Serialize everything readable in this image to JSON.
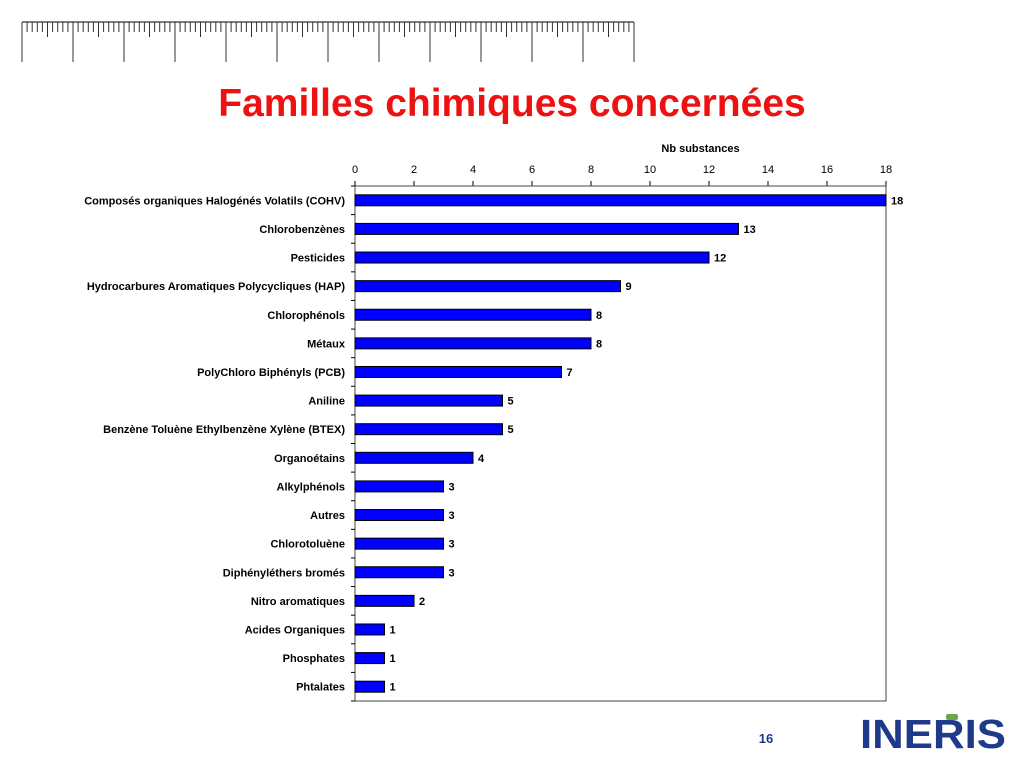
{
  "slide": {
    "title": "Familles chimiques concernées",
    "page_number": "16",
    "logo_text": "INERIS"
  },
  "colors": {
    "title": "#ee1111",
    "bar_fill": "#0000ff",
    "bar_stroke": "#000000",
    "logo": "#1f3a8a",
    "logo_accent": "#6aa84f"
  },
  "chart_data": {
    "type": "bar",
    "orientation": "horizontal",
    "title": "",
    "xlabel": "Nb substances",
    "ylabel": "",
    "xlim": [
      0,
      18
    ],
    "x_ticks": [
      0,
      2,
      4,
      6,
      8,
      10,
      12,
      14,
      16,
      18
    ],
    "x_axis_position": "top",
    "grid": false,
    "legend": "none",
    "categories": [
      "Composés organiques Halogénés Volatils (COHV)",
      "Chlorobenzènes",
      "Pesticides",
      "Hydrocarbures Aromatiques Polycycliques (HAP)",
      "Chlorophénols",
      "Métaux",
      "PolyChloro Biphényls (PCB)",
      "Aniline",
      "Benzène Toluène Ethylbenzène Xylène (BTEX)",
      "Organoétains",
      "Alkylphénols",
      "Autres",
      "Chlorotoluène",
      "Diphényléthers bromés",
      "Nitro aromatiques",
      "Acides Organiques",
      "Phosphates",
      "Phtalates"
    ],
    "values": [
      18,
      13,
      12,
      9,
      8,
      8,
      7,
      5,
      5,
      4,
      3,
      3,
      3,
      3,
      2,
      1,
      1,
      1
    ]
  }
}
